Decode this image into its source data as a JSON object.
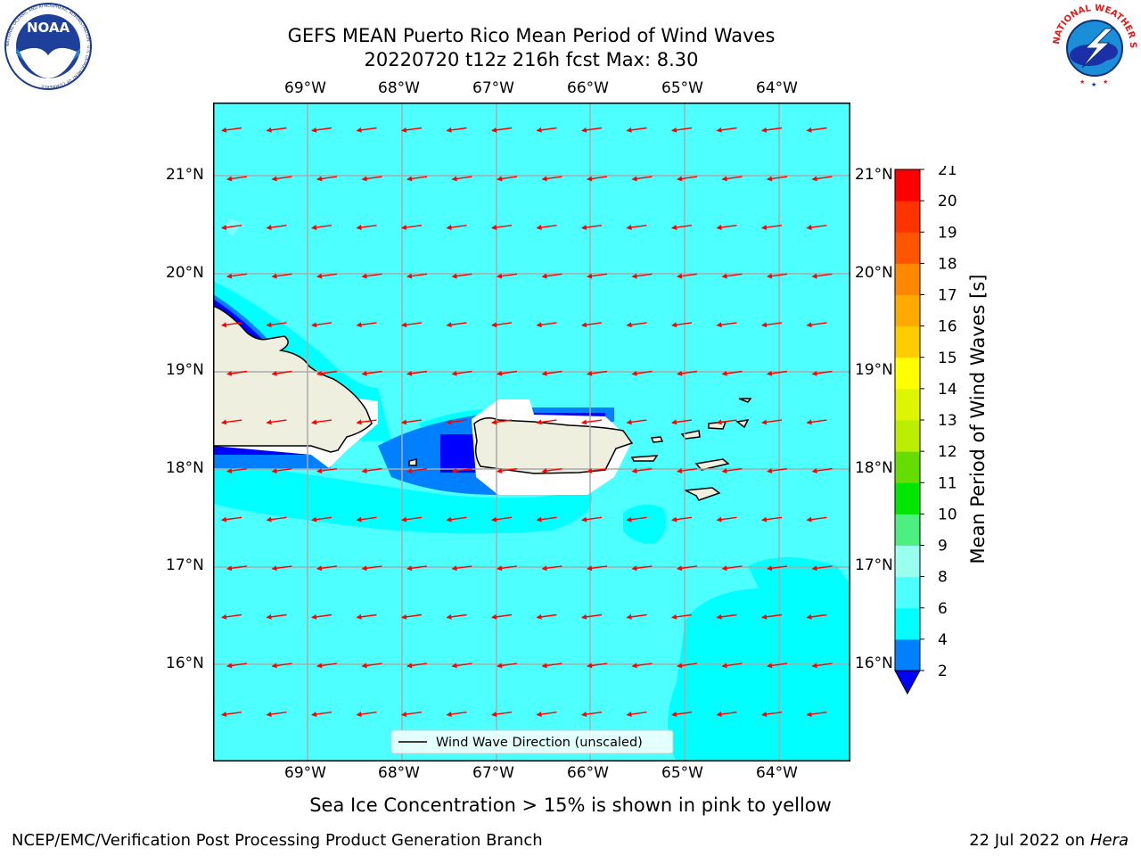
{
  "header": {
    "title_line1": "GEFS MEAN Puerto Rico Mean Period of Wind Waves",
    "title_line2": "20220720 t12z 216h fcst   Max: 8.30"
  },
  "logos": {
    "noaa_text": "NOAA",
    "noaa_ring": "NATIONAL OCEANIC AND ATMOSPHERIC ADMINISTRATION · U.S. DEPARTMENT OF COMMERCE",
    "nws_ring": "NATIONAL WEATHER SERVICE"
  },
  "map": {
    "lon_labels": [
      "69°W",
      "68°W",
      "67°W",
      "66°W",
      "65°W",
      "64°W"
    ],
    "lat_labels": [
      "21°N",
      "20°N",
      "19°N",
      "18°N",
      "17°N",
      "16°N"
    ],
    "legend_label": "Wind Wave Direction (unscaled)",
    "colors": {
      "ocean": "#4dffff",
      "ocean_deep": "#00ffff",
      "light": "#80ffff",
      "mid_blue": "#0080ff",
      "dark_blue": "#0000ff",
      "land": "#efefdf",
      "arrow": "#ff0000"
    }
  },
  "colorbar": {
    "label": "Mean Period of Wind Waves [s]",
    "ticks": [
      "2",
      "4",
      "6",
      "8",
      "9",
      "10",
      "11",
      "12",
      "13",
      "14",
      "15",
      "16",
      "17",
      "18",
      "19",
      "20",
      "21"
    ],
    "colors": [
      "#0000ff",
      "#0080ff",
      "#00ffff",
      "#4dffff",
      "#99ffee",
      "#4df080",
      "#00e600",
      "#66dd00",
      "#bbee00",
      "#ddf500",
      "#ffff00",
      "#ffcc00",
      "#ffaa00",
      "#ff8800",
      "#ff5500",
      "#ff3300",
      "#ff0000"
    ]
  },
  "footer": {
    "note": "Sea Ice Concentration > 15% is shown in pink to yellow",
    "branch": "NCEP/EMC/Verification Post Processing Product Generation Branch",
    "date": "22 Jul 2022 on ",
    "host": "Hera"
  }
}
